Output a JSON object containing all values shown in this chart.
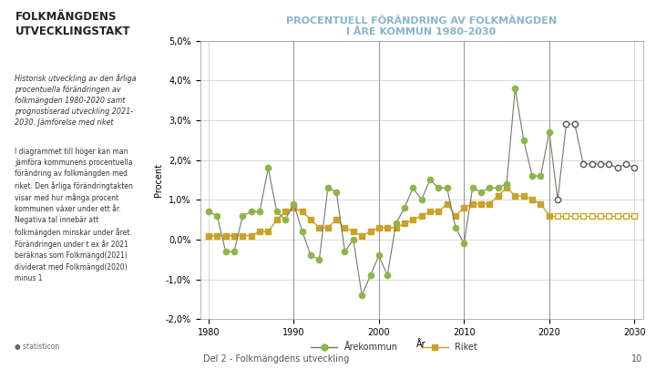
{
  "title_line1": "PROCENTUELL FÖRÄNDRING AV FOLKMÄNGDEN",
  "title_line2": "I ÅRE KOMMUN 1980-2030",
  "xlabel": "År",
  "ylabel": "Procent",
  "ylim": [
    -0.02,
    0.05
  ],
  "yticks": [
    -0.02,
    -0.01,
    0.0,
    0.01,
    0.02,
    0.03,
    0.04,
    0.05
  ],
  "ytick_labels": [
    "-2,0%",
    "-1,0%",
    "0,0%",
    "1,0%",
    "2,0%",
    "3,0%",
    "4,0%",
    "5,0%"
  ],
  "xlim": [
    1979,
    2031
  ],
  "xticks": [
    1980,
    1990,
    2000,
    2010,
    2020,
    2030
  ],
  "bg_color": "#ffffff",
  "plot_bg_color": "#ffffff",
  "grid_color": "#bbbbbb",
  "title_color": "#8ab4cc",
  "heading": "FOLKMÄNGDENS\nUTVECKLINGSTAKT",
  "subtext": "Historisk utveckling av den årliga\nprocentuella förändringen av\nfolkmängden 1980-2020 samt\nprognostiserad utveckling 2021-\n2030. Jämförelse med riket",
  "body_text": "I diagrammet till höger kan man\njämföra kommunens procentuella\nförändring av folkmängden med\nriket. Den årliga förändringtakten\nvisar med hur många procent\nkommunen växer under ett år.\nNegativa tal innebär att\nfolkmängden minskar under året.\nFörändringen under t ex år 2021\nberäknas som Folkmängd(2021)\ndividerat med Folkmängd(2020)\nminus 1",
  "legend_kommun": "Årekommun",
  "legend_rike": "Riket",
  "kommun_color": "#8db646",
  "rike_color": "#c9a227",
  "vertical_lines": [
    1990,
    2000,
    2010,
    2020
  ],
  "kommun_years": [
    1980,
    1981,
    1982,
    1983,
    1984,
    1985,
    1986,
    1987,
    1988,
    1989,
    1990,
    1991,
    1992,
    1993,
    1994,
    1995,
    1996,
    1997,
    1998,
    1999,
    2000,
    2001,
    2002,
    2003,
    2004,
    2005,
    2006,
    2007,
    2008,
    2009,
    2010,
    2011,
    2012,
    2013,
    2014,
    2015,
    2016,
    2017,
    2018,
    2019,
    2020
  ],
  "kommun_values": [
    0.007,
    0.006,
    -0.003,
    -0.003,
    0.006,
    0.007,
    0.007,
    0.018,
    0.007,
    0.005,
    0.009,
    0.002,
    -0.004,
    -0.005,
    0.013,
    0.012,
    -0.003,
    0.0,
    -0.014,
    -0.009,
    -0.004,
    -0.009,
    0.004,
    0.008,
    0.013,
    0.01,
    0.015,
    0.013,
    0.013,
    0.003,
    -0.001,
    0.013,
    0.012,
    0.013,
    0.013,
    0.014,
    0.038,
    0.025,
    0.016,
    0.016,
    0.027
  ],
  "rike_years": [
    1980,
    1981,
    1982,
    1983,
    1984,
    1985,
    1986,
    1987,
    1988,
    1989,
    1990,
    1991,
    1992,
    1993,
    1994,
    1995,
    1996,
    1997,
    1998,
    1999,
    2000,
    2001,
    2002,
    2003,
    2004,
    2005,
    2006,
    2007,
    2008,
    2009,
    2010,
    2011,
    2012,
    2013,
    2014,
    2015,
    2016,
    2017,
    2018,
    2019,
    2020
  ],
  "rike_values": [
    0.001,
    0.001,
    0.001,
    0.001,
    0.001,
    0.001,
    0.002,
    0.002,
    0.005,
    0.007,
    0.008,
    0.007,
    0.005,
    0.003,
    0.003,
    0.005,
    0.003,
    0.002,
    0.001,
    0.002,
    0.003,
    0.003,
    0.003,
    0.004,
    0.005,
    0.006,
    0.007,
    0.007,
    0.009,
    0.006,
    0.008,
    0.009,
    0.009,
    0.009,
    0.011,
    0.013,
    0.011,
    0.011,
    0.01,
    0.009,
    0.006
  ],
  "forecast_kommun_years": [
    2021,
    2022,
    2023,
    2024,
    2025,
    2026,
    2027,
    2028,
    2029,
    2030
  ],
  "forecast_kommun_values": [
    0.01,
    0.029,
    0.029,
    0.019,
    0.019,
    0.019,
    0.019,
    0.018,
    0.019,
    0.018
  ],
  "forecast_rike_years": [
    2021,
    2022,
    2023,
    2024,
    2025,
    2026,
    2027,
    2028,
    2029,
    2030
  ],
  "forecast_rike_values": [
    0.006,
    0.006,
    0.006,
    0.006,
    0.006,
    0.006,
    0.006,
    0.006,
    0.006,
    0.006
  ]
}
